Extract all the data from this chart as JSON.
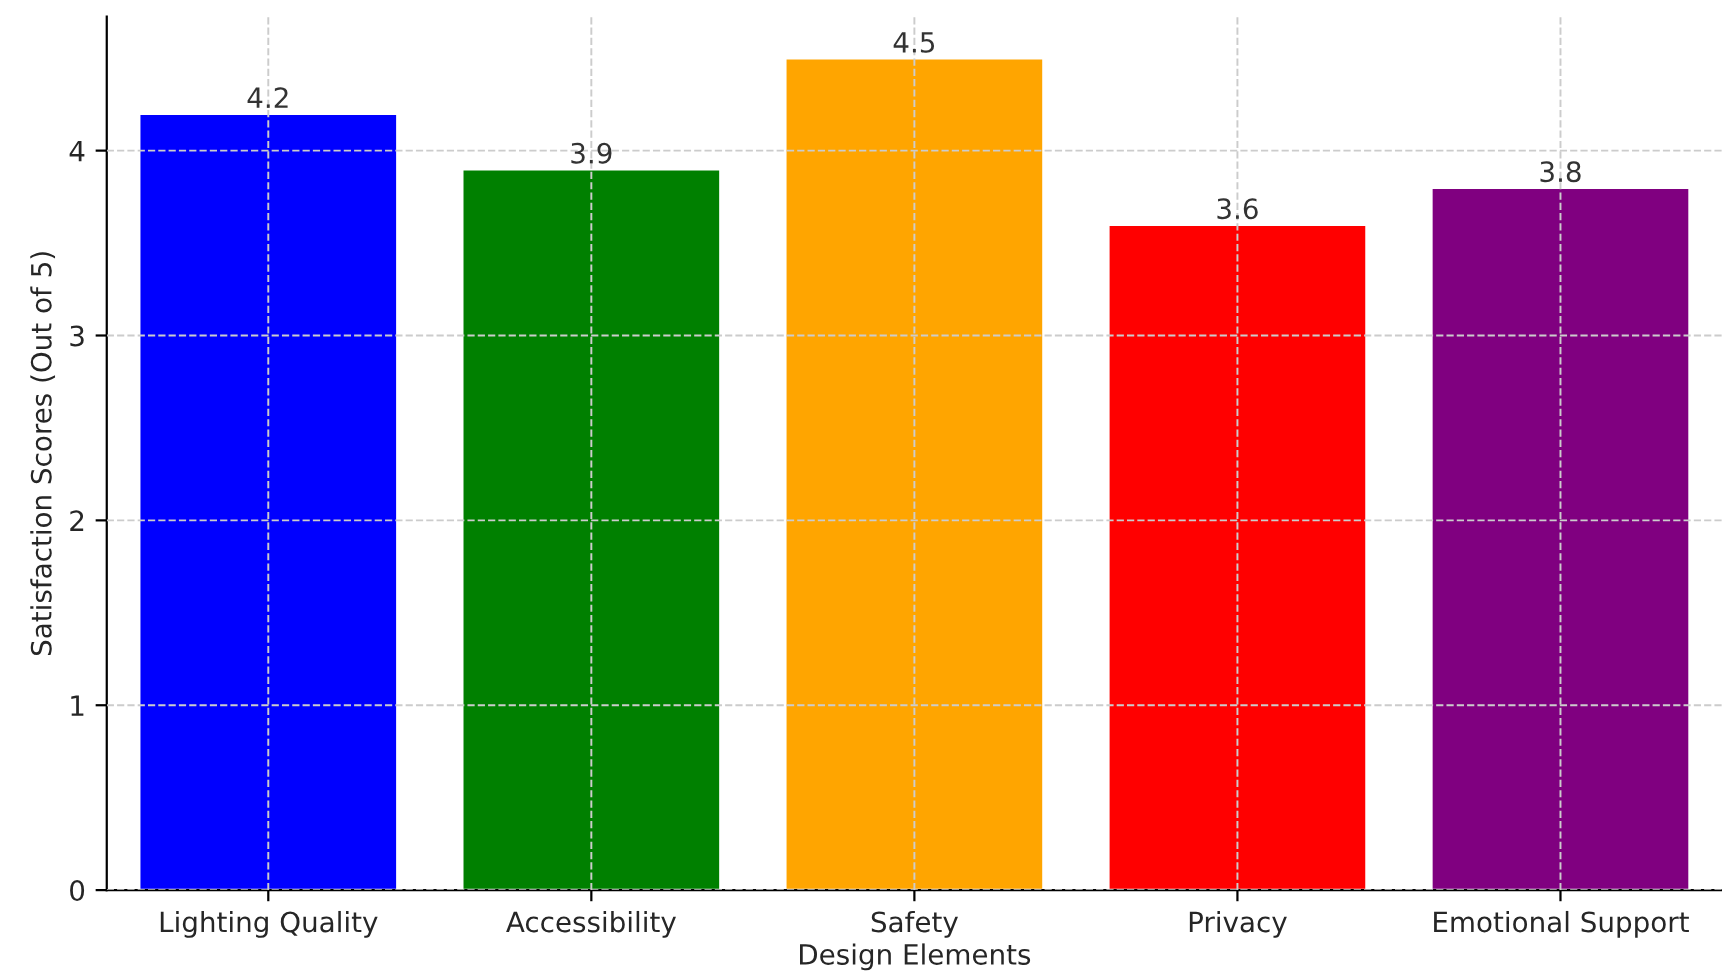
{
  "chart_data": {
    "type": "bar",
    "xlabel": "Design Elements",
    "ylabel": "Satisfaction Scores (Out of 5)",
    "categories": [
      "Lighting Quality",
      "Accessibility",
      "Safety",
      "Privacy",
      "Emotional Support"
    ],
    "values": [
      4.2,
      3.9,
      4.5,
      3.6,
      3.8
    ],
    "colors": [
      "#0000ff",
      "#008000",
      "#ffa500",
      "#ff0000",
      "#800080"
    ],
    "ylim": [
      0,
      4.725
    ],
    "yticks": [
      0,
      1,
      2,
      3,
      4
    ],
    "grid": true,
    "data_labels": true,
    "legend": false
  }
}
